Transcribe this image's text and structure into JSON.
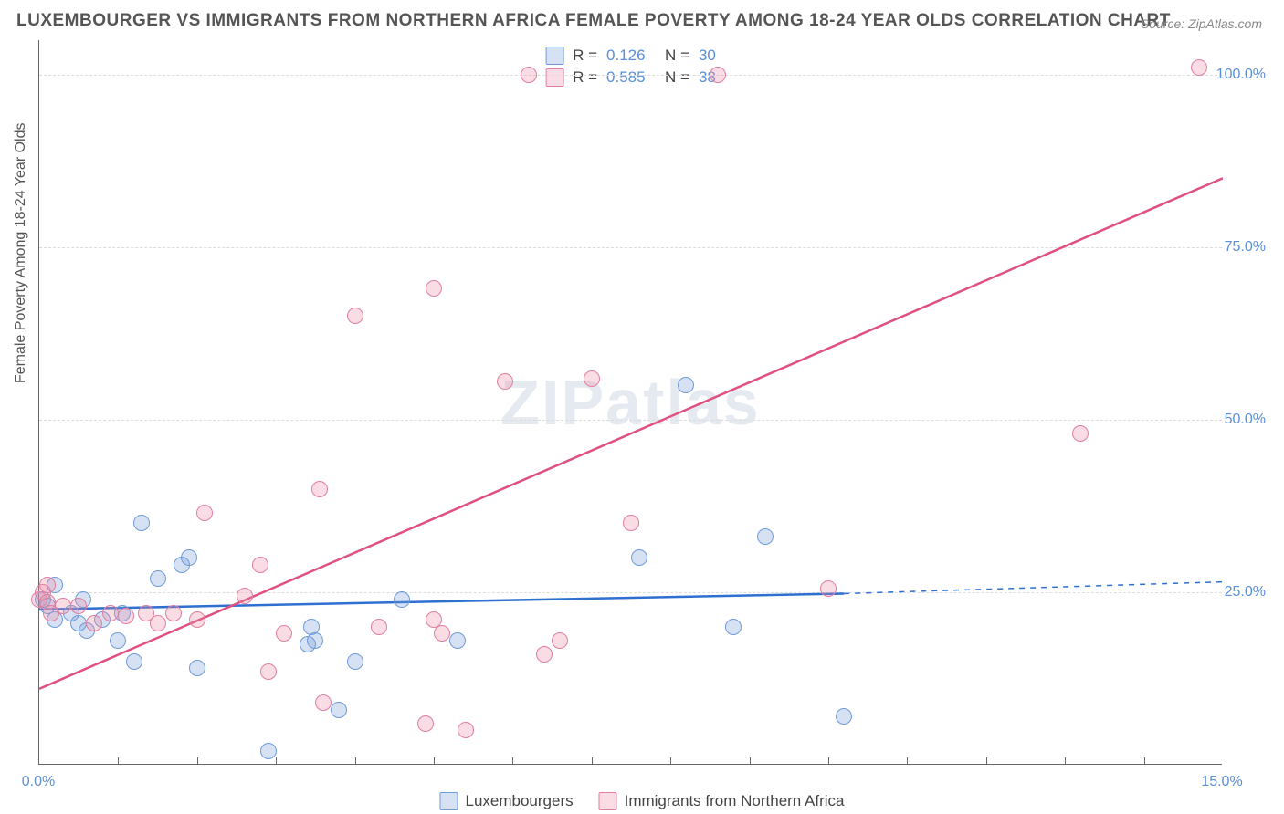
{
  "title": "LUXEMBOURGER VS IMMIGRANTS FROM NORTHERN AFRICA FEMALE POVERTY AMONG 18-24 YEAR OLDS CORRELATION CHART",
  "source": "Source: ZipAtlas.com",
  "y_axis_label": "Female Poverty Among 18-24 Year Olds",
  "watermark": "ZIPatlas",
  "chart": {
    "type": "scatter",
    "xlim": [
      0,
      15
    ],
    "ylim": [
      0,
      105
    ],
    "x_ticks": [
      0,
      15
    ],
    "x_tick_labels": [
      "0.0%",
      "15.0%"
    ],
    "x_minor_ticks": [
      1,
      2,
      3,
      4,
      5,
      6,
      7,
      8,
      9,
      10,
      11,
      12,
      13,
      14
    ],
    "y_grid": [
      25,
      50,
      75,
      100
    ],
    "y_tick_labels": [
      "25.0%",
      "50.0%",
      "75.0%",
      "100.0%"
    ],
    "background_color": "#ffffff",
    "grid_color": "#dddddd",
    "axis_color": "#666666",
    "marker_radius": 9,
    "marker_stroke_width": 1.5,
    "series": [
      {
        "name": "Luxembourgers",
        "fill": "rgba(120,160,220,0.30)",
        "stroke": "#6f9bd8",
        "R": "0.126",
        "N": "30",
        "regression": {
          "x1": 0,
          "y1": 22.5,
          "x2": 10.2,
          "y2": 24.8,
          "color": "#2e6fd0",
          "width": 2.5,
          "dash_ext_to": 15,
          "dash_y2": 26.5
        },
        "points": [
          [
            0.05,
            24
          ],
          [
            0.1,
            23
          ],
          [
            0.2,
            21
          ],
          [
            0.2,
            26
          ],
          [
            0.4,
            22
          ],
          [
            0.5,
            20.5
          ],
          [
            0.55,
            24
          ],
          [
            0.6,
            19.5
          ],
          [
            0.8,
            21
          ],
          [
            1.0,
            18
          ],
          [
            1.05,
            22
          ],
          [
            1.2,
            15
          ],
          [
            1.3,
            35
          ],
          [
            1.5,
            27
          ],
          [
            1.8,
            29
          ],
          [
            1.9,
            30
          ],
          [
            2.0,
            14
          ],
          [
            2.9,
            2
          ],
          [
            3.4,
            17.5
          ],
          [
            3.45,
            20
          ],
          [
            3.5,
            18
          ],
          [
            3.8,
            8
          ],
          [
            4.0,
            15
          ],
          [
            4.6,
            24
          ],
          [
            5.3,
            18
          ],
          [
            7.6,
            30
          ],
          [
            8.2,
            55
          ],
          [
            8.8,
            20
          ],
          [
            9.2,
            33
          ],
          [
            10.2,
            7
          ]
        ]
      },
      {
        "name": "Immigrants from Northern Africa",
        "fill": "rgba(235,140,165,0.30)",
        "stroke": "#e07fa0",
        "R": "0.585",
        "N": "38",
        "regression": {
          "x1": 0,
          "y1": 11,
          "x2": 15,
          "y2": 85,
          "color": "#e05080",
          "width": 2.5
        },
        "points": [
          [
            0.0,
            24
          ],
          [
            0.05,
            25
          ],
          [
            0.1,
            23.5
          ],
          [
            0.1,
            26
          ],
          [
            0.15,
            22
          ],
          [
            0.3,
            23
          ],
          [
            0.5,
            23
          ],
          [
            0.7,
            20.5
          ],
          [
            0.9,
            22
          ],
          [
            1.1,
            21.5
          ],
          [
            1.35,
            22
          ],
          [
            1.5,
            20.5
          ],
          [
            1.7,
            22
          ],
          [
            2.0,
            21
          ],
          [
            2.1,
            36.5
          ],
          [
            2.6,
            24.5
          ],
          [
            2.8,
            29
          ],
          [
            2.9,
            13.5
          ],
          [
            3.1,
            19
          ],
          [
            3.55,
            40
          ],
          [
            3.6,
            9
          ],
          [
            4.0,
            65
          ],
          [
            4.3,
            20
          ],
          [
            4.9,
            6
          ],
          [
            5.0,
            21
          ],
          [
            5.0,
            69
          ],
          [
            5.1,
            19
          ],
          [
            5.4,
            5
          ],
          [
            5.9,
            55.5
          ],
          [
            6.2,
            100
          ],
          [
            6.4,
            16
          ],
          [
            6.6,
            18
          ],
          [
            7.0,
            56
          ],
          [
            7.5,
            35
          ],
          [
            8.6,
            100
          ],
          [
            10.0,
            25.5
          ],
          [
            13.2,
            48
          ],
          [
            14.7,
            101
          ]
        ]
      }
    ]
  },
  "legend_top": {
    "r_label": "R  =",
    "n_label": "N  ="
  },
  "legend_bottom": [
    "Luxembourgers",
    "Immigrants from Northern Africa"
  ]
}
